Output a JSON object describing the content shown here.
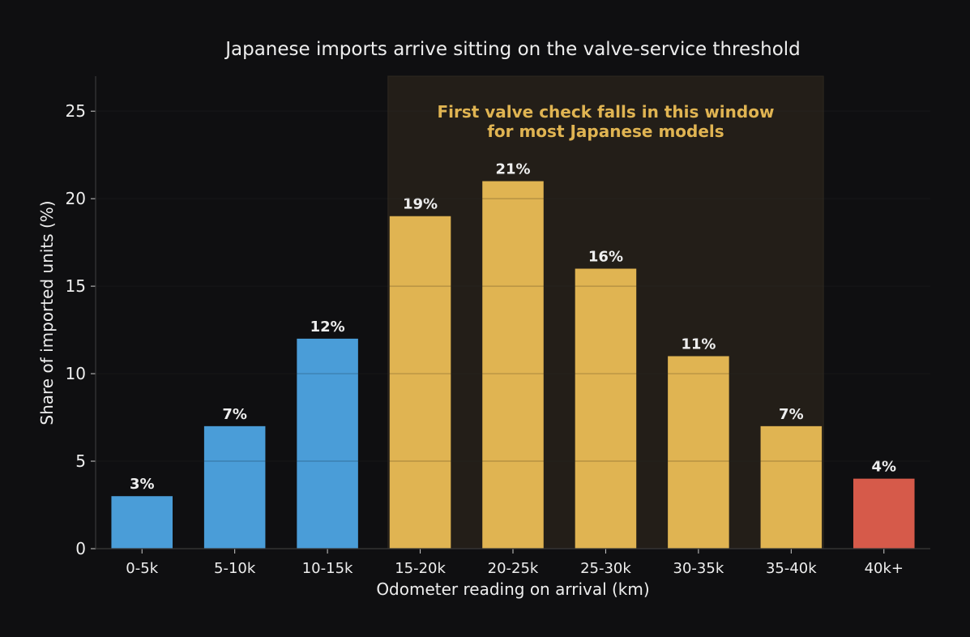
{
  "chart_data": {
    "type": "bar",
    "title": "Japanese imports arrive sitting on the valve-service threshold",
    "xlabel": "Odometer reading on arrival (km)",
    "ylabel": "Share of imported units (%)",
    "ylim": [
      0,
      27
    ],
    "yticks": [
      0,
      5,
      10,
      15,
      20,
      25
    ],
    "grid": true,
    "categories": [
      "0-5k",
      "5-10k",
      "10-15k",
      "15-20k",
      "20-25k",
      "25-30k",
      "30-35k",
      "35-40k",
      "40k+"
    ],
    "values": [
      3,
      7,
      12,
      19,
      21,
      16,
      11,
      7,
      4
    ],
    "value_labels": [
      "3%",
      "7%",
      "12%",
      "19%",
      "21%",
      "16%",
      "11%",
      "7%",
      "4%"
    ],
    "bar_colors": [
      "#4a9dd8",
      "#4a9dd8",
      "#4a9dd8",
      "#e0b452",
      "#e0b452",
      "#e0b452",
      "#e0b452",
      "#e0b452",
      "#d65a4a"
    ],
    "highlight_region": {
      "from_category": "15-20k",
      "to_category": "35-40k",
      "annotation_lines": [
        "First valve check falls in this window",
        "for most Japanese models"
      ]
    }
  },
  "colors": {
    "background": "#0f0f11",
    "text": "#eeeeee",
    "annotation": "#e0b452",
    "highlight_fill": "#231e18",
    "grid": "#1c1c1f",
    "axis": "#3a3a3a"
  }
}
